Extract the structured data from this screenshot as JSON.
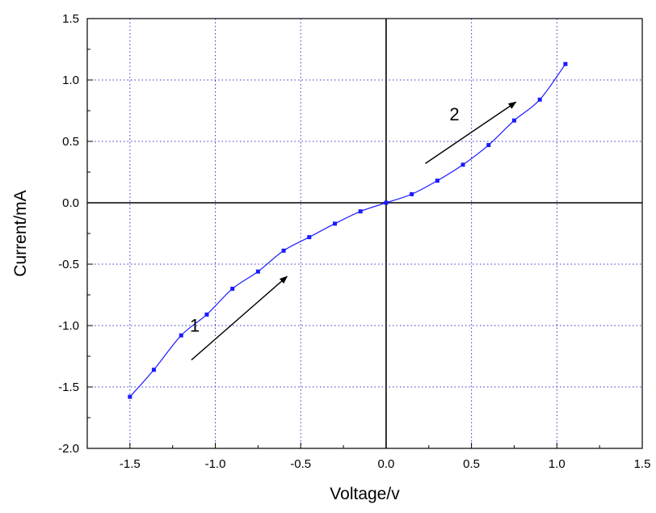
{
  "chart_data": {
    "type": "line",
    "title": "",
    "xlabel": "Voltage/v",
    "ylabel": "Current/mA",
    "xlim": [
      -1.75,
      1.5
    ],
    "ylim": [
      -2.0,
      1.5
    ],
    "grid": true,
    "x_ticks": [
      -1.5,
      -1.0,
      -0.5,
      0.0,
      0.5,
      1.0,
      1.5
    ],
    "x_tick_labels": [
      "-1.5",
      "-1.0",
      "-0.5",
      "0.0",
      "0.5",
      "1.0",
      "1.5"
    ],
    "y_ticks": [
      -2.0,
      -1.5,
      -1.0,
      -0.5,
      0.0,
      0.5,
      1.0,
      1.5
    ],
    "y_tick_labels": [
      "-2.0",
      "-1.5",
      "-1.0",
      "-0.5",
      "0.0",
      "0.5",
      "1.0",
      "1.5"
    ],
    "x_minor_ticks": [
      -1.25,
      -0.75,
      -0.25,
      0.25,
      0.75,
      1.25
    ],
    "y_minor_ticks": [
      -1.75,
      -1.25,
      -0.75,
      -0.25,
      0.25,
      0.75,
      1.25
    ],
    "series_color": "#1a1aff",
    "series": [
      {
        "x": [
          -1.5,
          -1.36,
          -1.2,
          -1.05,
          -0.9,
          -0.75,
          -0.6,
          -0.45,
          -0.3,
          -0.15,
          0.0,
          0.15,
          0.3,
          0.45,
          0.6,
          0.75,
          0.9,
          1.05
        ],
        "y": [
          -1.58,
          -1.36,
          -1.08,
          -0.91,
          -0.7,
          -0.56,
          -0.39,
          -0.28,
          -0.17,
          -0.07,
          0.0,
          0.07,
          0.18,
          0.31,
          0.47,
          0.67,
          0.84,
          1.13
        ]
      }
    ],
    "annotations": [
      {
        "text": "1",
        "x": -1.12,
        "y": -1.05,
        "arrow_from": [
          -1.14,
          -1.28
        ],
        "arrow_to": [
          -0.58,
          -0.6
        ]
      },
      {
        "text": "2",
        "x": 0.4,
        "y": 0.67,
        "arrow_from": [
          0.23,
          0.32
        ],
        "arrow_to": [
          0.76,
          0.82
        ]
      }
    ]
  }
}
